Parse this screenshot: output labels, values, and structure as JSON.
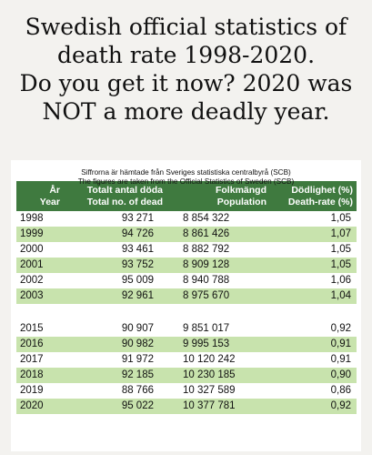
{
  "heading": {
    "line1": "Swedish official statistics of",
    "line2": "death rate 1998-2020.",
    "line3": "Do you get it now? 2020 was",
    "line4": "NOT a more deadly year."
  },
  "source": {
    "swedish": "Siffrorna är hämtade från Sveriges statistiska centralbyrå (SCB)",
    "english": "The figures are taken from the Official Statistics of Sweden (SCB)"
  },
  "table": {
    "headers": {
      "year_sv": "År",
      "year_en": "Year",
      "dead_sv": "Totalt antal döda",
      "dead_en": "Total no. of dead",
      "pop_sv": "Folkmängd",
      "pop_en": "Population",
      "rate_sv": "Dödlighet (%)",
      "rate_en": "Death-rate (%)"
    },
    "rows": [
      {
        "year": "1998",
        "dead": "93 271",
        "pop": "8 854 322",
        "rate": "1,05"
      },
      {
        "year": "1999",
        "dead": "94 726",
        "pop": "8 861 426",
        "rate": "1,07"
      },
      {
        "year": "2000",
        "dead": "93 461",
        "pop": "8 882 792",
        "rate": "1,05"
      },
      {
        "year": "2001",
        "dead": "93 752",
        "pop": "8 909 128",
        "rate": "1,05"
      },
      {
        "year": "2002",
        "dead": "95 009",
        "pop": "8 940 788",
        "rate": "1,06"
      },
      {
        "year": "2003",
        "dead": "92 961",
        "pop": "8 975 670",
        "rate": "1,04"
      },
      {
        "year": "2015",
        "dead": "90 907",
        "pop": "9 851 017",
        "rate": "0,92"
      },
      {
        "year": "2016",
        "dead": "90 982",
        "pop": "9 995 153",
        "rate": "0,91"
      },
      {
        "year": "2017",
        "dead": "91 972",
        "pop": "10 120 242",
        "rate": "0,91"
      },
      {
        "year": "2018",
        "dead": "92 185",
        "pop": "10 230 185",
        "rate": "0,90"
      },
      {
        "year": "2019",
        "dead": "88 766",
        "pop": "10 327 589",
        "rate": "0,86"
      },
      {
        "year": "2020",
        "dead": "95 022",
        "pop": "10 377 781",
        "rate": "0,92"
      }
    ]
  },
  "colors": {
    "header_bg": "#3f7a3f",
    "stripe": "#c8e3ad"
  }
}
